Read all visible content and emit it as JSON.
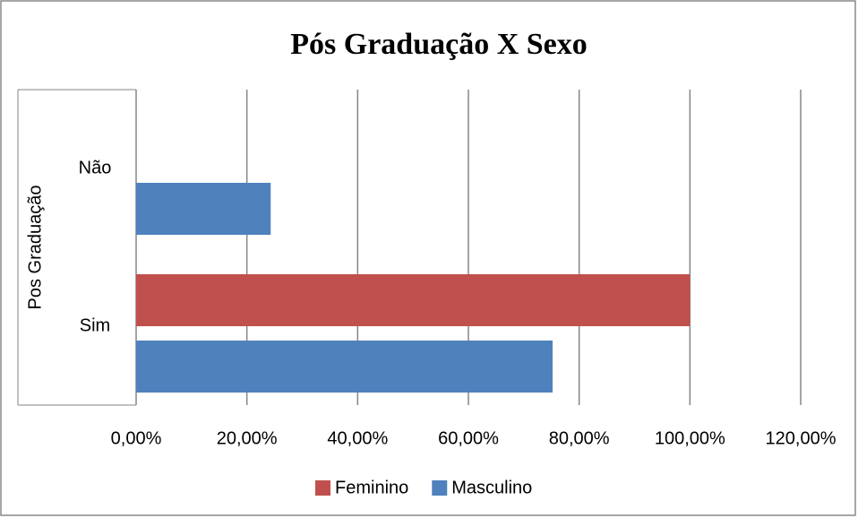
{
  "chart_data": {
    "type": "barh",
    "title": "Pós Graduação  X Sexo",
    "y_label": "Pos Graduação",
    "categories": [
      "Não",
      "Sim"
    ],
    "series": [
      {
        "name": "Feminino",
        "color": "#c0504d",
        "values": [
          0,
          100
        ]
      },
      {
        "name": "Masculino",
        "color": "#4f81bd",
        "values": [
          24.3,
          75.2
        ]
      }
    ],
    "xlim": [
      0,
      120
    ],
    "xticks": [
      {
        "value": 0,
        "label": "0,00%"
      },
      {
        "value": 20,
        "label": "20,00%"
      },
      {
        "value": 40,
        "label": "40,00%"
      },
      {
        "value": 60,
        "label": "60,00%"
      },
      {
        "value": 80,
        "label": "80,00%"
      },
      {
        "value": 100,
        "label": "100,00%"
      },
      {
        "value": 120,
        "label": "120,00%"
      }
    ],
    "grid": true,
    "legend": "bottom"
  }
}
